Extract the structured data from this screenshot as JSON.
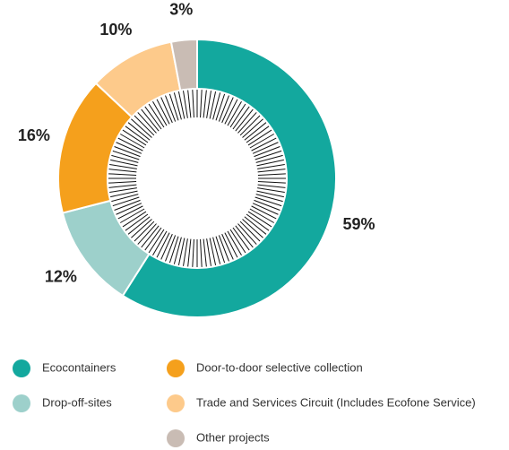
{
  "chart_data": {
    "type": "pie",
    "donut": true,
    "categories": [
      "Ecocontainers",
      "Drop-off-sites",
      "Door-to-door selective collection",
      "Trade and Services Circuit  (Includes Ecofone Service)",
      "Other projects"
    ],
    "values": [
      59,
      12,
      16,
      10,
      3
    ],
    "value_labels": [
      "59%",
      "12%",
      "16%",
      "10%",
      "3%"
    ],
    "colors": [
      "#13a89e",
      "#9dd0cb",
      "#f5a01c",
      "#fdca8b",
      "#c9bcb4"
    ],
    "legend": true
  }
}
